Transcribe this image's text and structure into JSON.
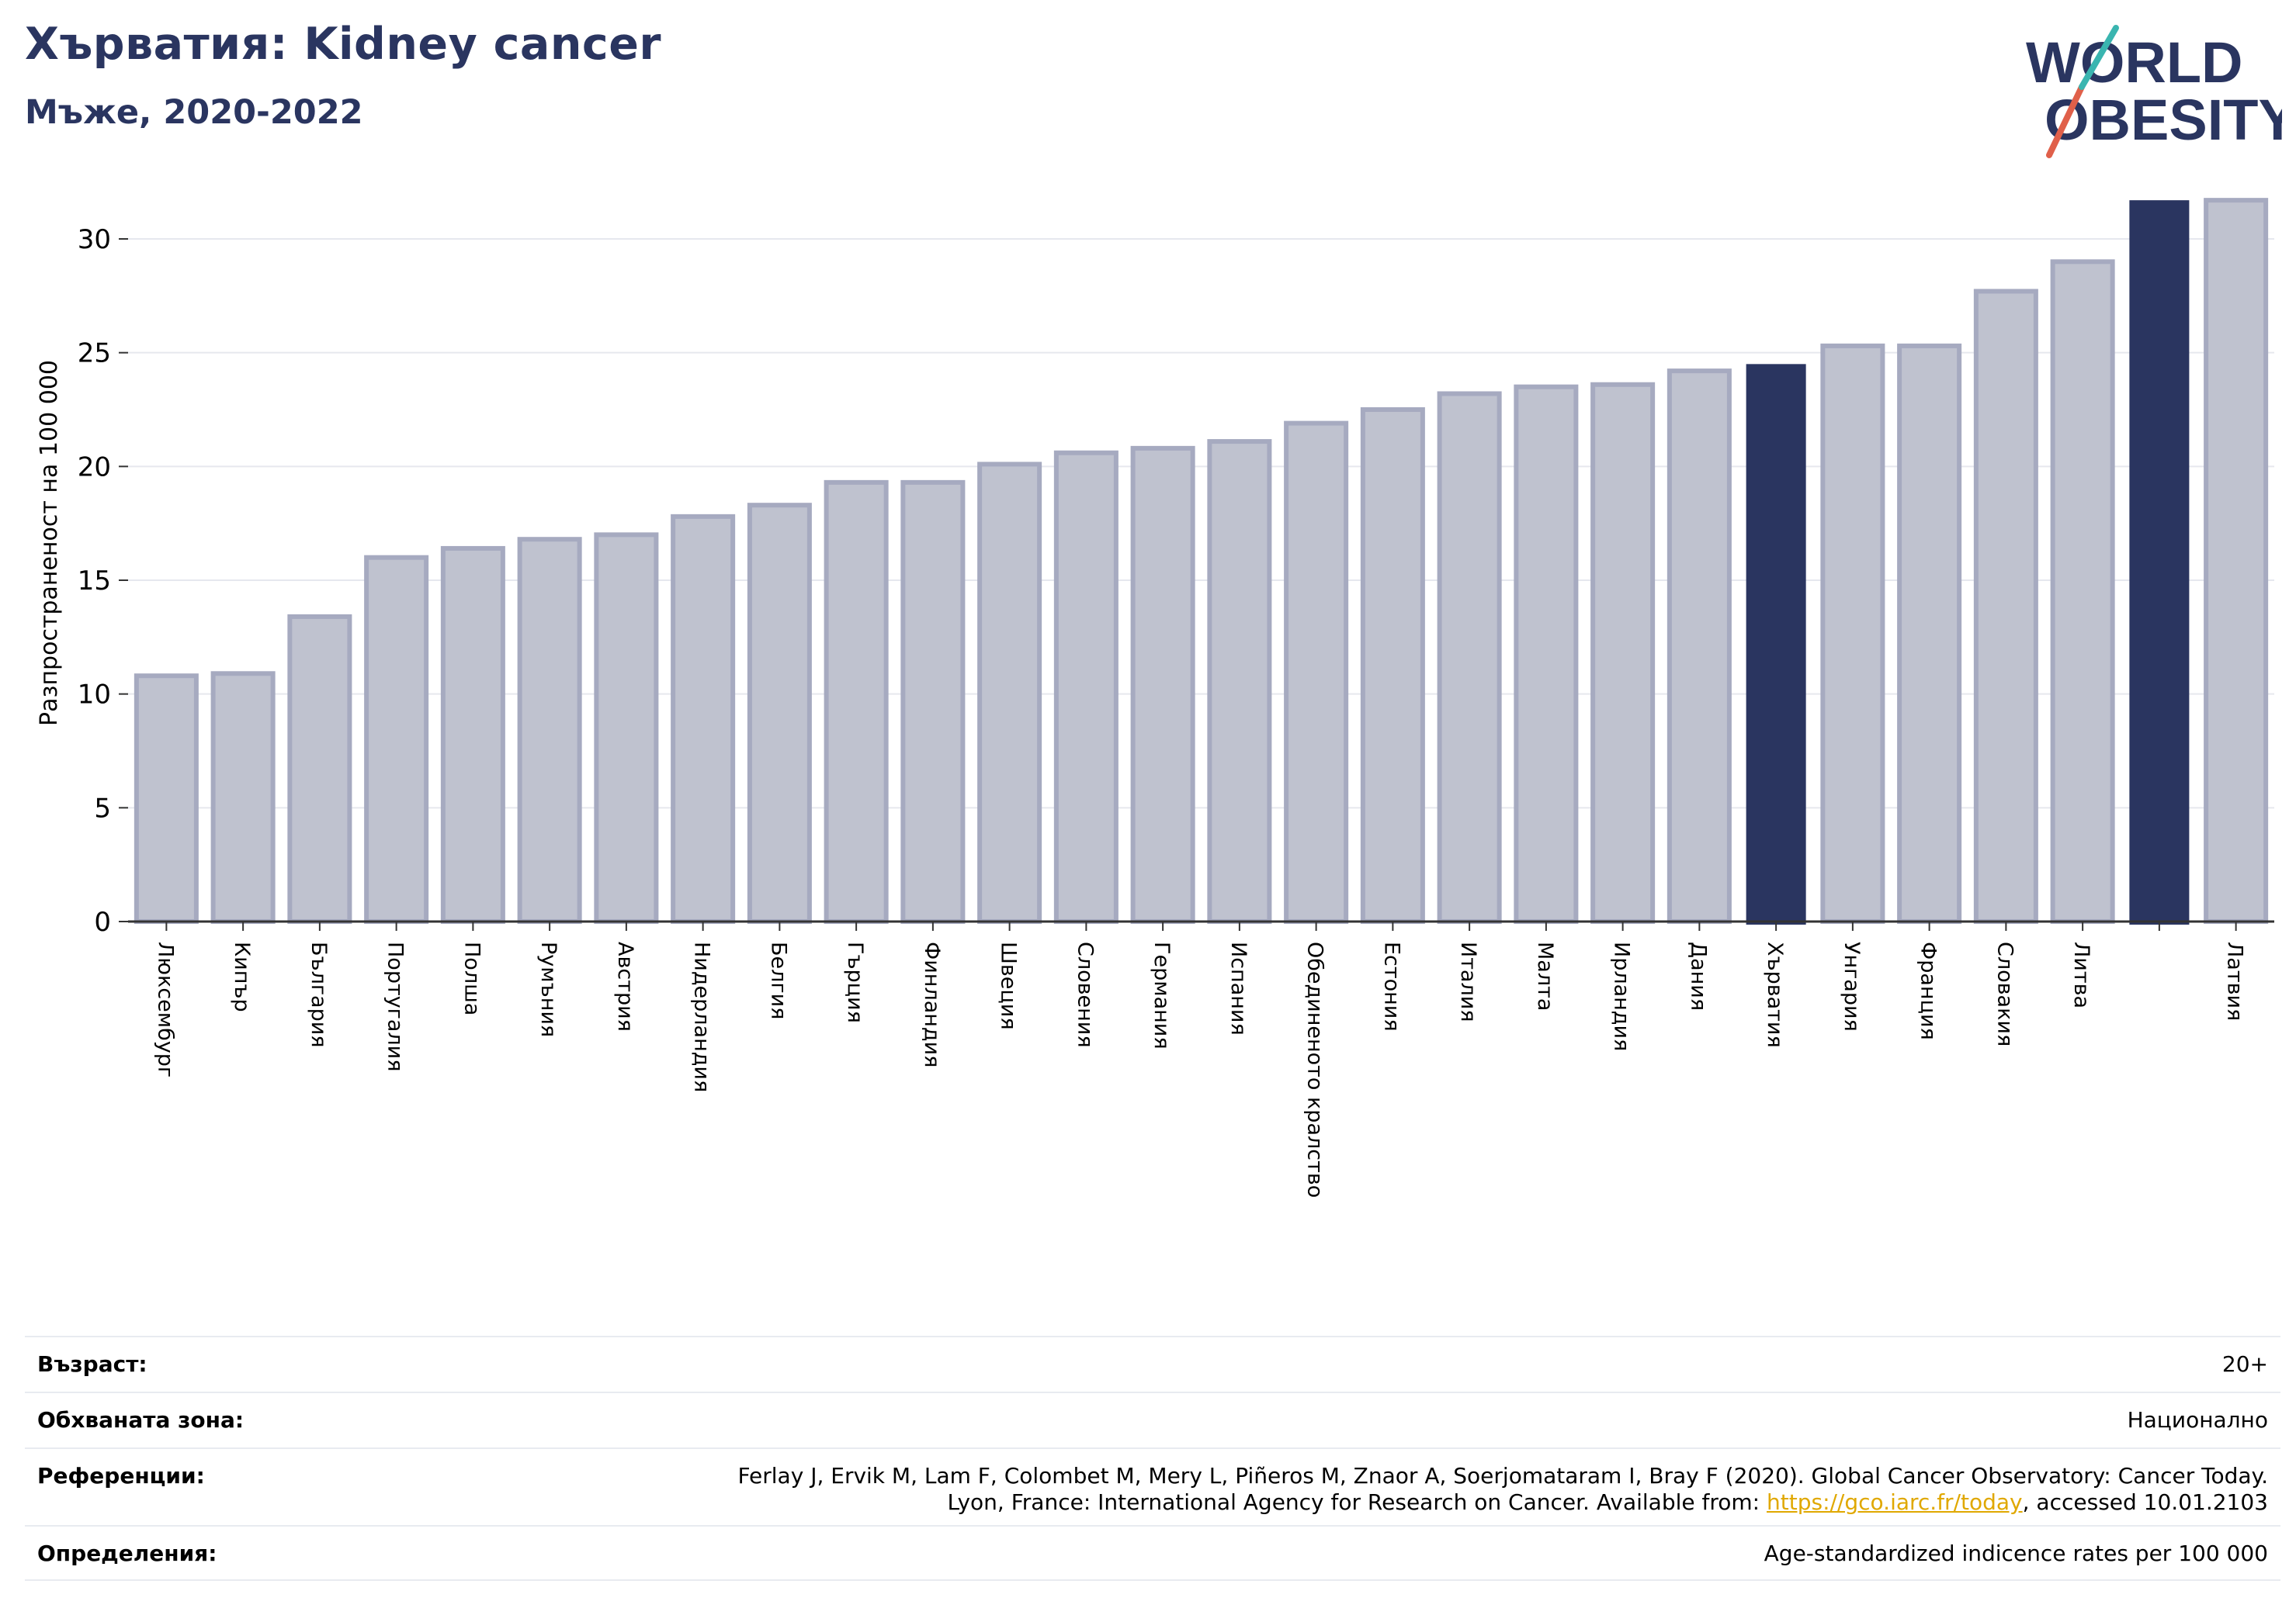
{
  "header": {
    "title": "Хърватия: Kidney cancer",
    "subtitle": "Мъже, 2020-2022"
  },
  "logo": {
    "line1": "WORLD",
    "line2": "OBESITY"
  },
  "chart_data": {
    "type": "bar",
    "ylabel": "Разпространеност  на 100 000",
    "ylim": [
      0,
      32.5
    ],
    "yticks": [
      0,
      5,
      10,
      15,
      20,
      25,
      30
    ],
    "grid": true,
    "categories": [
      "Люксембург",
      "Кипър",
      "България",
      "Португалия",
      "Полша",
      "Румъния",
      "Австрия",
      "Нидерландия",
      "Белгия",
      "Гърция",
      "Финландия",
      "Швеция",
      "Словения",
      "Германия",
      "Испания",
      "Обединеното кралство",
      "Естония",
      "Италия",
      "Малта",
      "Ирландия",
      "Дания",
      "Хърватия",
      "Унгария",
      "Франция",
      "Словакия",
      "Литва",
      "",
      "Латвия"
    ],
    "values": [
      10.8,
      10.9,
      13.4,
      16.0,
      16.4,
      16.8,
      17.0,
      17.8,
      18.3,
      19.3,
      19.3,
      20.1,
      20.6,
      20.8,
      21.1,
      21.9,
      22.5,
      23.2,
      23.5,
      23.6,
      24.2,
      24.5,
      25.3,
      25.3,
      27.7,
      29.0,
      31.7,
      31.7
    ],
    "highlight": [
      21,
      26
    ],
    "colors": {
      "bar": "#bfc2cf",
      "bar_edge": "#a6aac0",
      "highlight": "#2a3560",
      "axis": "#333333",
      "grid": "#e6e8ee"
    }
  },
  "footer": {
    "rows": [
      {
        "label": "Възраст:",
        "value": "20+"
      },
      {
        "label": "Обхваната зона:",
        "value": "Национално"
      },
      {
        "label": "Референции:",
        "value_line1": "Ferlay J, Ervik M, Lam F, Colombet M, Mery L, Piñeros M, Znaor A, Soerjomataram I, Bray F (2020). Global Cancer Observatory: Cancer Today.",
        "value_line2_pre": "Lyon, France: International Agency for Research on Cancer. Available from: ",
        "link": "https://gco.iarc.fr/today",
        "value_line2_post": ", accessed 10.01.2103"
      },
      {
        "label": "Определения:",
        "value": "Age-standardized indicence rates per 100 000"
      }
    ]
  }
}
